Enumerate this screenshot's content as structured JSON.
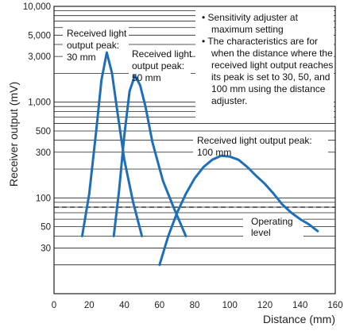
{
  "chart_data": {
    "type": "line",
    "xlabel": "Distance (mm)",
    "ylabel": "Receiver output (mV)",
    "xlim": [
      0,
      160
    ],
    "ylim": [
      10,
      10000
    ],
    "y_scale": "log",
    "x_ticks": [
      "0",
      "20",
      "40",
      "60",
      "80",
      "100",
      "120",
      "140",
      "160"
    ],
    "y_ticks": [
      "30",
      "50",
      "100",
      "300",
      "500",
      "1,000",
      "3,000",
      "5,000",
      "10,000"
    ],
    "grid": true,
    "series": [
      {
        "label": "Received light output peak: 30 mm",
        "x": [
          16,
          20,
          24,
          27,
          30,
          33,
          36,
          40,
          45,
          50
        ],
        "y": [
          40,
          110,
          500,
          1700,
          3300,
          2000,
          800,
          250,
          90,
          40
        ]
      },
      {
        "label": "Received light output peak: 50 mm",
        "x": [
          34,
          37,
          40,
          43,
          46,
          49,
          52,
          56,
          62,
          68,
          75
        ],
        "y": [
          40,
          120,
          450,
          1300,
          1900,
          1500,
          900,
          380,
          150,
          80,
          40
        ]
      },
      {
        "label": "Received light output peak: 100 mm",
        "x": [
          60,
          65,
          70,
          75,
          80,
          85,
          90,
          95,
          100,
          105,
          110,
          115,
          120,
          125,
          130,
          135,
          140,
          145,
          150
        ],
        "y": [
          20,
          40,
          70,
          110,
          160,
          210,
          250,
          275,
          270,
          250,
          210,
          170,
          140,
          110,
          85,
          70,
          60,
          53,
          45
        ]
      }
    ],
    "reference_lines": [
      {
        "label": "Operating level",
        "y": 80,
        "style": "dashed"
      }
    ],
    "notes": [
      "• Sensitivity adjuster at",
      "maximum setting",
      "• The characteristics are for",
      "when the distance where the",
      "received light output reaches",
      "its peak is set to 30,  50, and",
      "100 mm using the distance",
      "adjuster."
    ],
    "series_labels": [
      [
        "Received light",
        "output peak:",
        "30 mm"
      ],
      [
        "Received light",
        "output peak:",
        "50 mm"
      ],
      [
        "Received light output peak:",
        "100 mm"
      ]
    ],
    "reference_label": [
      "Operating",
      "level"
    ],
    "colors": {
      "series": "#1f6fb8",
      "grid": "#222222",
      "text": "#111111"
    }
  }
}
